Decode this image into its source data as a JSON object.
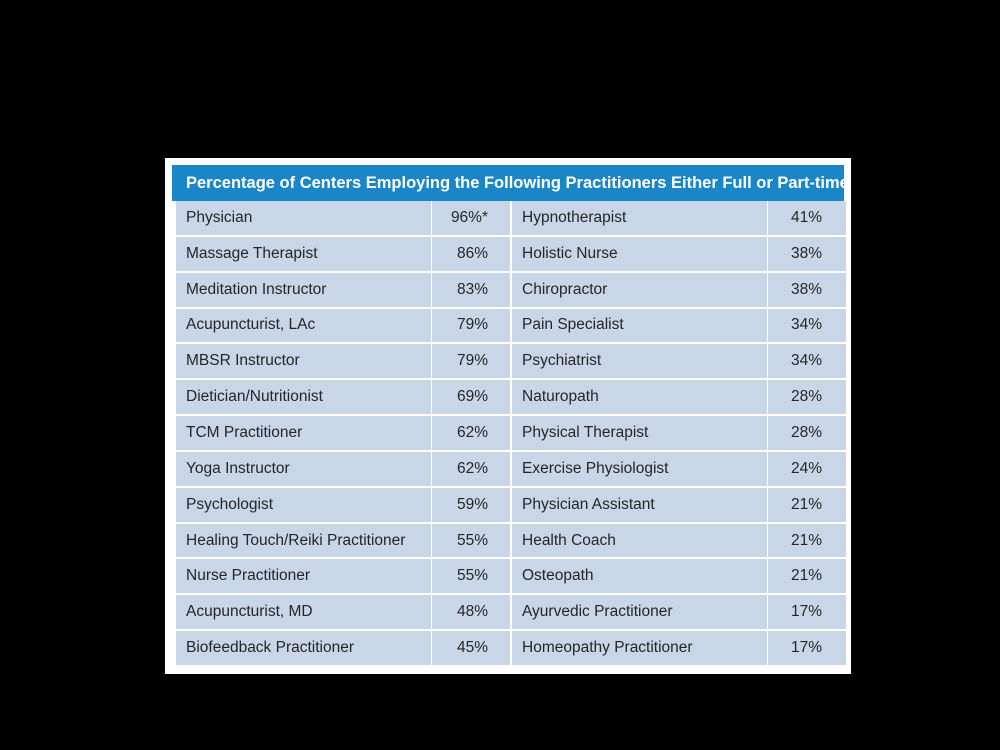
{
  "table": {
    "title": "Percentage of Centers Employing the Following Practitioners Either Full or Part-time:",
    "left": [
      {
        "name": "Physician",
        "pct": "96%*"
      },
      {
        "name": "Massage Therapist",
        "pct": "86%"
      },
      {
        "name": "Meditation Instructor",
        "pct": "83%"
      },
      {
        "name": "Acupuncturist, LAc",
        "pct": "79%"
      },
      {
        "name": "MBSR Instructor",
        "pct": "79%"
      },
      {
        "name": "Dietician/Nutritionist",
        "pct": "69%"
      },
      {
        "name": "TCM Practitioner",
        "pct": "62%"
      },
      {
        "name": "Yoga Instructor",
        "pct": "62%"
      },
      {
        "name": "Psychologist",
        "pct": "59%"
      },
      {
        "name": "Healing Touch/Reiki Practitioner",
        "pct": "55%"
      },
      {
        "name": "Nurse Practitioner",
        "pct": "55%"
      },
      {
        "name": "Acupuncturist, MD",
        "pct": "48%"
      },
      {
        "name": "Biofeedback Practitioner",
        "pct": "45%"
      }
    ],
    "right": [
      {
        "name": "Hypnotherapist",
        "pct": "41%"
      },
      {
        "name": "Holistic Nurse",
        "pct": "38%"
      },
      {
        "name": "Chiropractor",
        "pct": "38%"
      },
      {
        "name": "Pain Specialist",
        "pct": "34%"
      },
      {
        "name": "Psychiatrist",
        "pct": "34%"
      },
      {
        "name": "Naturopath",
        "pct": "28%"
      },
      {
        "name": "Physical Therapist",
        "pct": "28%"
      },
      {
        "name": "Exercise Physiologist",
        "pct": "24%"
      },
      {
        "name": "Physician Assistant",
        "pct": "21%"
      },
      {
        "name": "Health Coach",
        "pct": "21%"
      },
      {
        "name": "Osteopath",
        "pct": "21%"
      },
      {
        "name": "Ayurvedic Practitioner",
        "pct": "17%"
      },
      {
        "name": "Homeopathy Practitioner",
        "pct": "17%"
      }
    ],
    "colors": {
      "header_bg": "#1a86c7",
      "cell_bg": "#c8d6e8",
      "page_bg": "#000000"
    }
  }
}
